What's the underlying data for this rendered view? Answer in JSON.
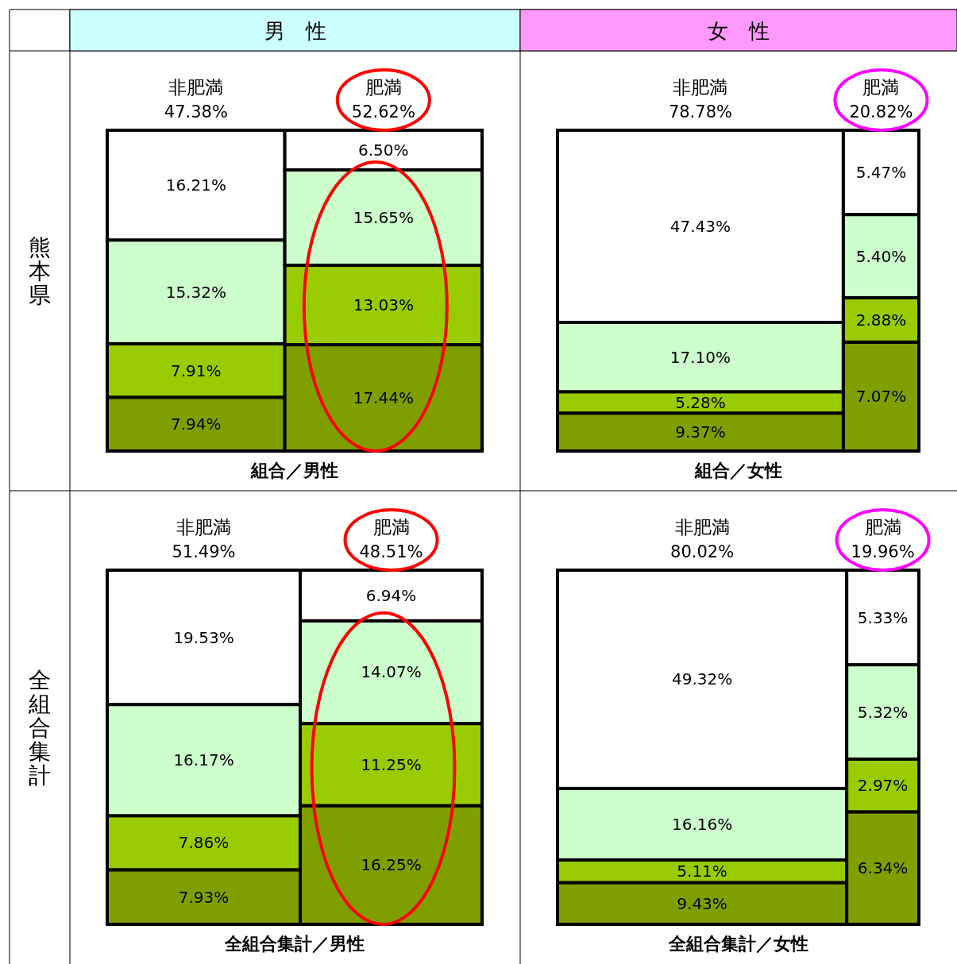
{
  "chart_data": [
    {
      "type": "other",
      "subtitle": "男　性",
      "ylabel": "熊本県",
      "title": "組合／男性",
      "categories": [
        "非肥満",
        "肥満"
      ],
      "values": [
        47.38,
        52.62
      ],
      "value_labels": [
        "47.38%",
        "52.62%"
      ],
      "series": [
        {
          "color": "#7f9f00",
          "values": [
            7.94,
            17.44
          ],
          "value_labels": [
            "7.94%",
            "17.44%"
          ]
        },
        {
          "color": "#99cc00",
          "values": [
            7.91,
            13.03
          ],
          "value_labels": [
            "7.91%",
            "13.03%"
          ]
        },
        {
          "color": "#ccffcc",
          "values": [
            15.32,
            15.65
          ],
          "value_labels": [
            "15.32%",
            "15.65%"
          ]
        },
        {
          "color": "#ffffff",
          "values": [
            16.21,
            6.5
          ],
          "value_labels": [
            "16.21%",
            "6.50%"
          ]
        }
      ]
    },
    {
      "type": "other",
      "subtitle": "女　性",
      "title": "組合／女性",
      "categories": [
        "非肥満",
        "肥満"
      ],
      "values": [
        78.78,
        20.82
      ],
      "value_labels": [
        "78.78%",
        "20.82%"
      ],
      "series": [
        {
          "color": "#7f9f00",
          "values": [
            9.37,
            7.07
          ],
          "value_labels": [
            "9.37%",
            "7.07%"
          ]
        },
        {
          "color": "#99cc00",
          "values": [
            5.28,
            2.88
          ],
          "value_labels": [
            "5.28%",
            "2.88%"
          ]
        },
        {
          "color": "#ccffcc",
          "values": [
            17.1,
            5.4
          ],
          "value_labels": [
            "17.10%",
            "5.40%"
          ]
        },
        {
          "color": "#ffffff",
          "values": [
            47.43,
            5.47
          ],
          "value_labels": [
            "47.43%",
            "5.47%"
          ]
        }
      ]
    },
    {
      "type": "other",
      "ylabel": "全組合集計",
      "title": "全組合集計／男性",
      "categories": [
        "非肥満",
        "肥満"
      ],
      "values": [
        51.49,
        48.51
      ],
      "value_labels": [
        "51.49%",
        "48.51%"
      ],
      "series": [
        {
          "color": "#7f9f00",
          "values": [
            7.93,
            16.25
          ],
          "value_labels": [
            "7.93%",
            "16.25%"
          ]
        },
        {
          "color": "#99cc00",
          "values": [
            7.86,
            11.25
          ],
          "value_labels": [
            "7.86%",
            "11.25%"
          ]
        },
        {
          "color": "#ccffcc",
          "values": [
            16.17,
            14.07
          ],
          "value_labels": [
            "16.17%",
            "14.07%"
          ]
        },
        {
          "color": "#ffffff",
          "values": [
            19.53,
            6.94
          ],
          "value_labels": [
            "19.53%",
            "6.94%"
          ]
        }
      ]
    },
    {
      "type": "other",
      "title": "全組合集計／女性",
      "categories": [
        "非肥満",
        "肥満"
      ],
      "values": [
        80.02,
        19.96
      ],
      "value_labels": [
        "80.02%",
        "19.96%"
      ],
      "series": [
        {
          "color": "#7f9f00",
          "values": [
            9.43,
            6.34
          ],
          "value_labels": [
            "9.43%",
            "6.34%"
          ]
        },
        {
          "color": "#99cc00",
          "values": [
            5.11,
            2.97
          ],
          "value_labels": [
            "5.11%",
            "2.97%"
          ]
        },
        {
          "color": "#ccffcc",
          "values": [
            16.16,
            5.32
          ],
          "value_labels": [
            "16.16%",
            "5.32%"
          ]
        },
        {
          "color": "#ffffff",
          "values": [
            49.32,
            5.33
          ],
          "value_labels": [
            "49.32%",
            "5.33%"
          ]
        }
      ]
    }
  ]
}
